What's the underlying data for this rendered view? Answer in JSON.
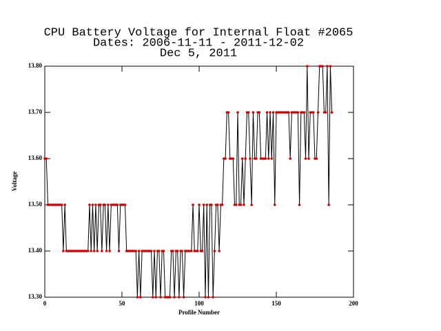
{
  "chart_data": {
    "type": "line",
    "title": "CPU Battery Voltage for Internal Float #2065",
    "subtitle": "Dates:  2006-11-11 -  2011-12-02",
    "date": "Dec  5, 2011",
    "xlabel": "Profile Number",
    "ylabel": "Voltage",
    "xlim": [
      0,
      200
    ],
    "xticks": [
      0,
      50,
      100,
      150,
      200
    ],
    "ylim": [
      13.3,
      13.8
    ],
    "yticks": [
      {
        "value": 13.3,
        "label": "13.30"
      },
      {
        "value": 13.4,
        "label": "13.40"
      },
      {
        "value": 13.5,
        "label": "13.50"
      },
      {
        "value": 13.6,
        "label": "13.60"
      },
      {
        "value": 13.7,
        "label": "13.70"
      },
      {
        "value": 13.8,
        "label": "13.80"
      }
    ],
    "x": [
      0,
      1,
      2,
      3,
      4,
      5,
      6,
      7,
      8,
      9,
      10,
      11,
      12,
      13,
      14,
      15,
      16,
      17,
      18,
      19,
      20,
      21,
      22,
      23,
      24,
      25,
      26,
      27,
      28,
      29,
      30,
      31,
      32,
      33,
      34,
      35,
      36,
      37,
      38,
      39,
      40,
      41,
      42,
      43,
      44,
      45,
      46,
      47,
      48,
      49,
      50,
      51,
      52,
      53,
      54,
      55,
      56,
      57,
      58,
      59,
      60,
      61,
      62,
      63,
      64,
      65,
      66,
      67,
      68,
      69,
      70,
      71,
      72,
      73,
      74,
      75,
      76,
      77,
      78,
      79,
      80,
      81,
      82,
      83,
      84,
      85,
      86,
      87,
      88,
      89,
      90,
      91,
      92,
      93,
      94,
      95,
      96,
      97,
      98,
      99,
      100,
      101,
      102,
      103,
      104,
      105,
      106,
      107,
      108,
      109,
      110,
      111,
      112,
      113,
      114,
      115,
      116,
      117,
      118,
      119,
      120,
      121,
      122,
      123,
      124,
      125,
      126,
      127,
      128,
      129,
      130,
      131,
      132,
      133,
      134,
      135,
      136,
      137,
      138,
      139,
      140,
      141,
      142,
      143,
      144,
      145,
      146,
      147,
      148,
      149,
      150,
      151,
      152,
      153,
      154,
      155,
      156,
      157,
      158,
      159,
      160,
      161,
      162,
      163,
      164,
      165,
      166,
      167,
      168,
      169,
      170,
      171,
      172,
      173,
      174,
      175,
      176,
      177,
      178,
      179,
      180,
      181,
      182,
      183,
      184,
      185,
      186
    ],
    "series": [
      {
        "line_color": "#000000",
        "marker_color": "#cc0000",
        "values": [
          13.6,
          13.6,
          13.5,
          13.5,
          13.5,
          13.5,
          13.5,
          13.5,
          13.5,
          13.5,
          13.5,
          13.5,
          13.4,
          13.5,
          13.4,
          13.4,
          13.4,
          13.4,
          13.4,
          13.4,
          13.4,
          13.4,
          13.4,
          13.4,
          13.4,
          13.4,
          13.4,
          13.4,
          13.4,
          13.5,
          13.4,
          13.5,
          13.4,
          13.5,
          13.4,
          13.5,
          13.5,
          13.4,
          13.5,
          13.5,
          13.4,
          13.5,
          13.4,
          13.5,
          13.5,
          13.5,
          13.5,
          13.5,
          13.4,
          13.5,
          13.5,
          13.5,
          13.5,
          13.4,
          13.4,
          13.4,
          13.4,
          13.4,
          13.4,
          13.4,
          13.3,
          13.4,
          13.3,
          13.4,
          13.4,
          13.4,
          13.4,
          13.4,
          13.4,
          13.4,
          13.3,
          13.4,
          13.3,
          13.4,
          13.4,
          13.3,
          13.4,
          13.4,
          13.3,
          13.3,
          13.3,
          13.3,
          13.4,
          13.4,
          13.3,
          13.4,
          13.4,
          13.3,
          13.4,
          13.4,
          13.3,
          13.4,
          13.4,
          13.4,
          13.4,
          13.4,
          13.5,
          13.4,
          13.4,
          13.4,
          13.5,
          13.4,
          13.4,
          13.5,
          13.3,
          13.5,
          13.3,
          13.5,
          13.5,
          13.3,
          13.4,
          13.5,
          13.5,
          13.4,
          13.5,
          13.5,
          13.6,
          13.6,
          13.7,
          13.7,
          13.6,
          13.6,
          13.6,
          13.5,
          13.5,
          13.7,
          13.5,
          13.5,
          13.6,
          13.5,
          13.6,
          13.7,
          13.7,
          13.6,
          13.5,
          13.7,
          13.6,
          13.6,
          13.7,
          13.7,
          13.6,
          13.6,
          13.6,
          13.6,
          13.7,
          13.6,
          13.7,
          13.6,
          13.7,
          13.5,
          13.7,
          13.7,
          13.7,
          13.7,
          13.7,
          13.7,
          13.7,
          13.7,
          13.7,
          13.6,
          13.7,
          13.7,
          13.7,
          13.7,
          13.7,
          13.5,
          13.7,
          13.7,
          13.7,
          13.6,
          13.8,
          13.6,
          13.7,
          13.7,
          13.7,
          13.6,
          13.6,
          13.7,
          13.8,
          13.8,
          13.8,
          13.7,
          13.7,
          13.8,
          13.5,
          13.8,
          13.7
        ]
      }
    ]
  }
}
